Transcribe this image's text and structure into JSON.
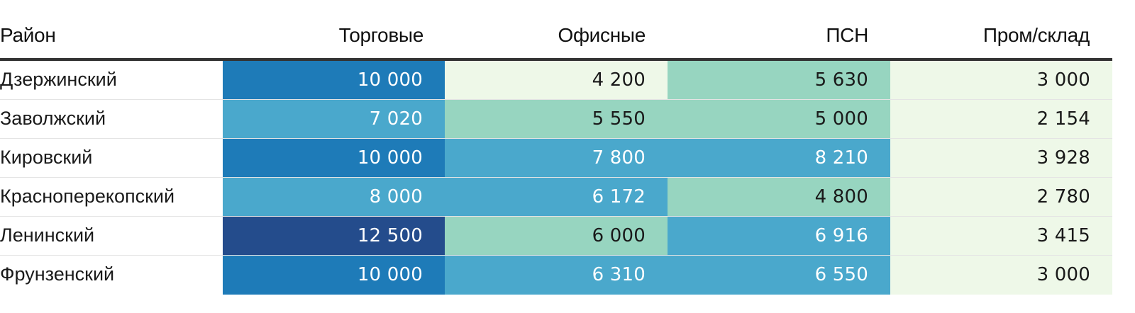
{
  "chart_data": {
    "type": "heatmap",
    "columns": [
      "Район",
      "Торговые",
      "Офисные",
      "ПСН",
      "Пром/склад"
    ],
    "rows": [
      {
        "district": "Дзержинский",
        "values": [
          10000,
          4200,
          5630,
          3000
        ],
        "labels": [
          "10 000",
          "4 200",
          "5 630",
          "3 000"
        ]
      },
      {
        "district": "Заволжский",
        "values": [
          7020,
          5550,
          5000,
          2154
        ],
        "labels": [
          "7 020",
          "5 550",
          "5 000",
          "2 154"
        ]
      },
      {
        "district": "Кировский",
        "values": [
          10000,
          7800,
          8210,
          3928
        ],
        "labels": [
          "10 000",
          "7 800",
          "8 210",
          "3 928"
        ]
      },
      {
        "district": "Красноперекопский",
        "values": [
          8000,
          6172,
          4800,
          2780
        ],
        "labels": [
          "8 000",
          "6 172",
          "4 800",
          "2 780"
        ]
      },
      {
        "district": "Ленинский",
        "values": [
          12500,
          6000,
          6916,
          3415
        ],
        "labels": [
          "12 500",
          "6 000",
          "6 916",
          "3 415"
        ]
      },
      {
        "district": "Фрунзенский",
        "values": [
          10000,
          6310,
          6550,
          3000
        ],
        "labels": [
          "10 000",
          "6 310",
          "6 550",
          "3 000"
        ]
      }
    ],
    "color_scale": [
      {
        "max": 4500,
        "bg": "#eef8e8",
        "fg": "#1a1a1a"
      },
      {
        "max": 6000,
        "bg": "#97d5c0",
        "fg": "#1a1a1a"
      },
      {
        "max": 9000,
        "bg": "#4aa8cc",
        "fg": "#ffffff"
      },
      {
        "max": 11000,
        "bg": "#1e7bb8",
        "fg": "#ffffff"
      },
      {
        "max": 99999,
        "bg": "#244c8c",
        "fg": "#ffffff"
      }
    ],
    "legend": "none",
    "grid": "horizontal"
  }
}
